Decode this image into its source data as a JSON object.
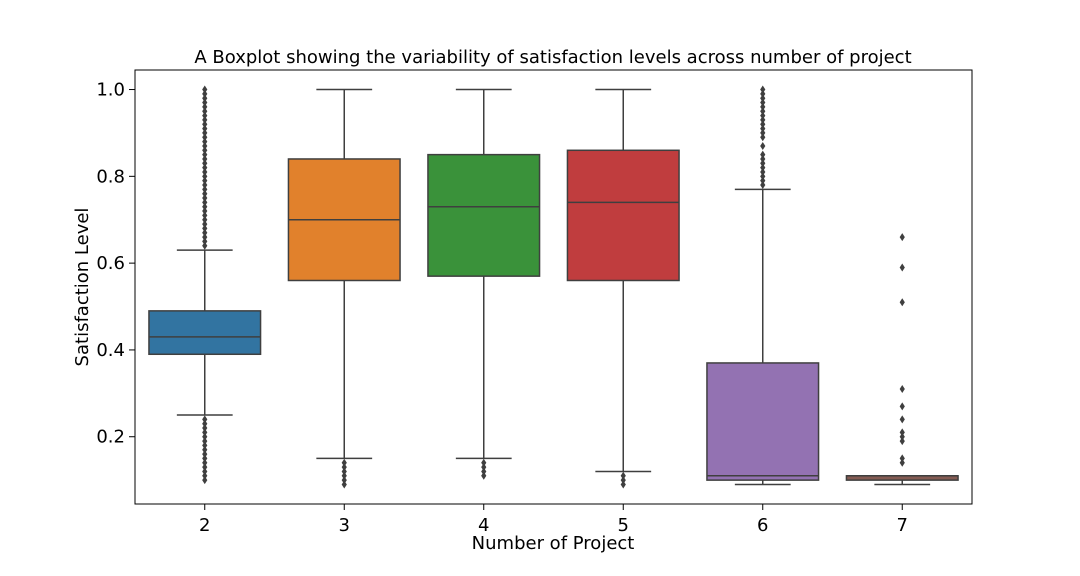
{
  "chart_data": {
    "type": "box",
    "title": "A Boxplot showing the variability of satisfaction levels across number of project",
    "xlabel": "Number of Project",
    "ylabel": "Satisfaction Level",
    "ylim": [
      0.045,
      1.045
    ],
    "yticks": [
      0.2,
      0.4,
      0.6,
      0.8,
      1.0
    ],
    "ytick_labels": [
      "0.2",
      "0.4",
      "0.6",
      "0.8",
      "1.0"
    ],
    "grid": false,
    "categories": [
      "2",
      "3",
      "4",
      "5",
      "6",
      "7"
    ],
    "series": [
      {
        "category": "2",
        "color": "#3274a1",
        "whisker_low": 0.25,
        "q1": 0.39,
        "median": 0.43,
        "q3": 0.49,
        "whisker_high": 0.63,
        "outliers": [
          0.1,
          0.11,
          0.12,
          0.13,
          0.14,
          0.15,
          0.16,
          0.17,
          0.18,
          0.19,
          0.2,
          0.21,
          0.22,
          0.23,
          0.24,
          0.64,
          0.65,
          0.66,
          0.67,
          0.68,
          0.69,
          0.7,
          0.71,
          0.72,
          0.73,
          0.74,
          0.75,
          0.76,
          0.77,
          0.78,
          0.79,
          0.8,
          0.81,
          0.82,
          0.83,
          0.84,
          0.85,
          0.86,
          0.87,
          0.88,
          0.89,
          0.9,
          0.91,
          0.92,
          0.93,
          0.94,
          0.95,
          0.96,
          0.97,
          0.98,
          0.99,
          1.0
        ]
      },
      {
        "category": "3",
        "color": "#e1812c",
        "whisker_low": 0.15,
        "q1": 0.56,
        "median": 0.7,
        "q3": 0.84,
        "whisker_high": 1.0,
        "outliers": [
          0.09,
          0.1,
          0.11,
          0.12,
          0.13,
          0.14
        ]
      },
      {
        "category": "4",
        "color": "#3a923a",
        "whisker_low": 0.15,
        "q1": 0.57,
        "median": 0.73,
        "q3": 0.85,
        "whisker_high": 1.0,
        "outliers": [
          0.11,
          0.12,
          0.13,
          0.14
        ]
      },
      {
        "category": "5",
        "color": "#c03d3e",
        "whisker_low": 0.12,
        "q1": 0.56,
        "median": 0.74,
        "q3": 0.86,
        "whisker_high": 1.0,
        "outliers": [
          0.09,
          0.1,
          0.11
        ]
      },
      {
        "category": "6",
        "color": "#9372b2",
        "whisker_low": 0.09,
        "q1": 0.1,
        "median": 0.11,
        "q3": 0.37,
        "whisker_high": 0.77,
        "outliers": [
          0.78,
          0.79,
          0.8,
          0.81,
          0.82,
          0.83,
          0.84,
          0.85,
          0.87,
          0.89,
          0.9,
          0.91,
          0.92,
          0.93,
          0.94,
          0.95,
          0.96,
          0.97,
          0.98,
          0.99,
          1.0
        ]
      },
      {
        "category": "7",
        "color": "#845b53",
        "whisker_low": 0.09,
        "q1": 0.1,
        "median": 0.11,
        "q3": 0.11,
        "whisker_high": 0.11,
        "outliers": [
          0.14,
          0.15,
          0.19,
          0.2,
          0.21,
          0.24,
          0.27,
          0.31,
          0.51,
          0.59,
          0.66
        ]
      }
    ]
  }
}
